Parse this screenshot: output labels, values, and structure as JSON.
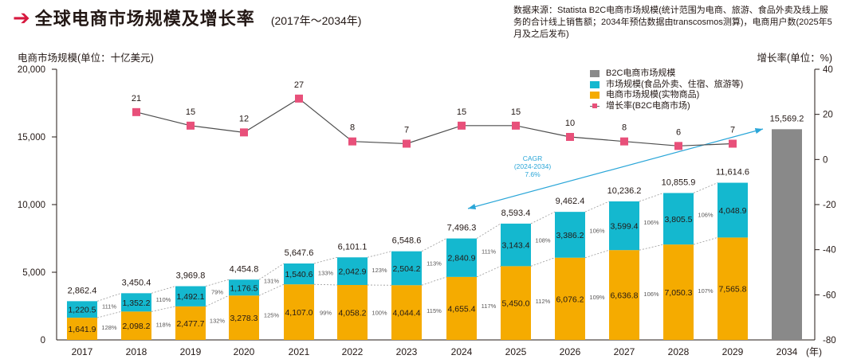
{
  "header": {
    "arrow_icon": "right-arrow-icon",
    "title": "全球电商市场规模及增长率",
    "subtitle": "(2017年～2034年)",
    "source": "数据来源：Statista B2C电商市场规模(统计范围为电商、旅游、食品外卖及线上服务的合计线上销售额；2034年预估数据由transcosmos测算)，电商用户数(2025年5月及之后发布)"
  },
  "colors": {
    "physical": "#f5ab00",
    "services": "#14b8cf",
    "b2c_total": "#898989",
    "growth_marker": "#e8507a",
    "growth_line": "#4d4d4d",
    "cagr": "#2aa6d8",
    "axis": "#231815"
  },
  "chart_data": {
    "type": "bar",
    "title": "全球电商市场规模及增长率",
    "subtitle": "(2017年～2034年)",
    "xlabel": "(年)",
    "ylabel": "电商市场规模(单位：十亿美元)",
    "ylabel_right": "增长率(单位：%)",
    "ylim": [
      0,
      20000
    ],
    "ylim_right": [
      -80,
      40
    ],
    "yticks": [
      "0",
      "5,000",
      "10,000",
      "15,000",
      "20,000"
    ],
    "yticks_values": [
      0,
      5000,
      10000,
      15000,
      20000
    ],
    "yticks_right": [
      "-80",
      "-60",
      "-40",
      "-20",
      "0",
      "20",
      "40"
    ],
    "yticks_right_values": [
      -80,
      -60,
      -40,
      -20,
      0,
      20,
      40
    ],
    "categories": [
      "2017",
      "2018",
      "2019",
      "2020",
      "2021",
      "2022",
      "2023",
      "2024",
      "2025",
      "2026",
      "2027",
      "2028",
      "2029",
      "2034"
    ],
    "legend_position": "top-right",
    "legend": [
      {
        "name": "B2C电商市场规模",
        "kind": "bar",
        "color_key": "b2c_total"
      },
      {
        "name": "市场规模(食品外卖、住宿、旅游等)",
        "kind": "bar",
        "color_key": "services"
      },
      {
        "name": "电商市场规模(实物商品)",
        "kind": "bar",
        "color_key": "physical"
      },
      {
        "name": "增长率(B2C电商市场)",
        "kind": "line",
        "color_key": "growth_marker"
      }
    ],
    "series": [
      {
        "name": "电商市场规模(实物商品)",
        "type": "stacked-bar",
        "color_key": "physical",
        "values": [
          1641.9,
          2098.2,
          2477.7,
          3278.3,
          4107.0,
          4058.2,
          4044.4,
          4655.4,
          5450.0,
          6076.2,
          6636.8,
          7050.3,
          7565.8,
          null
        ],
        "labels": [
          "1,641.9",
          "2,098.2",
          "2,477.7",
          "3,278.3",
          "4,107.0",
          "4,058.2",
          "4,044.4",
          "4,655.4",
          "5,450.0",
          "6,076.2",
          "6,636.8",
          "7,050.3",
          "7,565.8",
          null
        ]
      },
      {
        "name": "市场规模(食品外卖、住宿、旅游等)",
        "type": "stacked-bar",
        "color_key": "services",
        "values": [
          1220.5,
          1352.2,
          1492.1,
          1176.5,
          1540.6,
          2042.9,
          2504.2,
          2840.9,
          3143.4,
          3386.2,
          3599.4,
          3805.5,
          4048.9,
          null
        ],
        "labels": [
          "1,220.5",
          "1,352.2",
          "1,492.1",
          "1,176.5",
          "1,540.6",
          "2,042.9",
          "2,504.2",
          "2,840.9",
          "3,143.4",
          "3,386.2",
          "3,599.4",
          "3,805.5",
          "4,048.9",
          null
        ]
      },
      {
        "name": "B2C电商市场规模",
        "type": "bar",
        "color_key": "b2c_total",
        "values": [
          null,
          null,
          null,
          null,
          null,
          null,
          null,
          null,
          null,
          null,
          null,
          null,
          null,
          15569.2
        ],
        "labels": [
          null,
          null,
          null,
          null,
          null,
          null,
          null,
          null,
          null,
          null,
          null,
          null,
          null,
          "15,569.2"
        ]
      },
      {
        "name": "增长率(B2C电商市场)",
        "type": "line",
        "axis": "right",
        "color_key": "growth_marker",
        "values": [
          null,
          21,
          15,
          12,
          27,
          8,
          7,
          15,
          15,
          10,
          8,
          6,
          7,
          null
        ],
        "labels": [
          null,
          "21",
          "15",
          "12",
          "27",
          "8",
          "7",
          "15",
          "15",
          "10",
          "8",
          "6",
          "7",
          null
        ]
      }
    ],
    "totals": [
      2862.4,
      3450.4,
      3969.8,
      4454.8,
      5647.6,
      6101.1,
      6548.6,
      7496.3,
      8593.4,
      9462.4,
      10236.2,
      10855.9,
      11614.6,
      15569.2
    ],
    "total_labels": [
      "2,862.4",
      "3,450.4",
      "3,969.8",
      "4,454.8",
      "5,647.6",
      "6,101.1",
      "6,548.6",
      "7,496.3",
      "8,593.4",
      "9,462.4",
      "10,236.2",
      "10,855.9",
      "11,614.6",
      "15,569.2"
    ],
    "yoy_services": [
      "111%",
      "110%",
      "79%",
      "131%",
      "133%",
      "123%",
      "113%",
      "111%",
      "108%",
      "106%",
      "106%",
      "106%"
    ],
    "yoy_physical": [
      "128%",
      "118%",
      "132%",
      "125%",
      "99%",
      "100%",
      "115%",
      "117%",
      "112%",
      "109%",
      "106%",
      "107%"
    ],
    "annotations": [
      {
        "text": "CAGR",
        "line2": "(2024-2034)",
        "line3": "7.6%",
        "from_category": "2024",
        "to_category": "2034",
        "color_key": "cagr"
      }
    ]
  }
}
